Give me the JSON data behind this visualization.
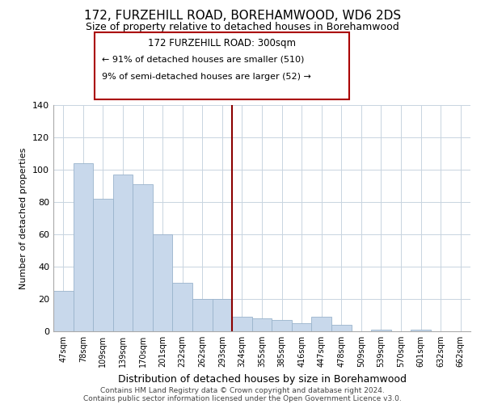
{
  "title": "172, FURZEHILL ROAD, BOREHAMWOOD, WD6 2DS",
  "subtitle": "Size of property relative to detached houses in Borehamwood",
  "xlabel": "Distribution of detached houses by size in Borehamwood",
  "ylabel": "Number of detached properties",
  "bar_labels": [
    "47sqm",
    "78sqm",
    "109sqm",
    "139sqm",
    "170sqm",
    "201sqm",
    "232sqm",
    "262sqm",
    "293sqm",
    "324sqm",
    "355sqm",
    "385sqm",
    "416sqm",
    "447sqm",
    "478sqm",
    "509sqm",
    "539sqm",
    "570sqm",
    "601sqm",
    "632sqm",
    "662sqm"
  ],
  "bar_values": [
    25,
    104,
    82,
    97,
    91,
    60,
    30,
    20,
    20,
    9,
    8,
    7,
    5,
    9,
    4,
    0,
    1,
    0,
    1,
    0,
    0
  ],
  "bar_color": "#c8d8eb",
  "bar_edgecolor": "#9ab4cc",
  "vline_x_index": 8,
  "vline_color": "#8b0000",
  "ylim": [
    0,
    140
  ],
  "yticks": [
    0,
    20,
    40,
    60,
    80,
    100,
    120,
    140
  ],
  "ann_line1": "172 FURZEHILL ROAD: 300sqm",
  "ann_line2": "← 91% of detached houses are smaller (510)",
  "ann_line3": "9% of semi-detached houses are larger (52) →",
  "footer_line1": "Contains HM Land Registry data © Crown copyright and database right 2024.",
  "footer_line2": "Contains public sector information licensed under the Open Government Licence v3.0.",
  "background_color": "#ffffff",
  "grid_color": "#c8d4e0"
}
